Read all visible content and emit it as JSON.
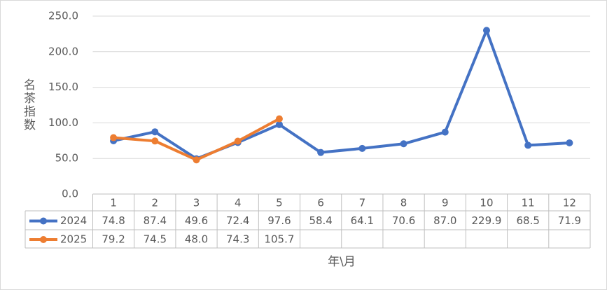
{
  "chart_data": {
    "type": "line",
    "ylabel": "名茶指数",
    "xlabel": "年\\月",
    "categories": [
      "1",
      "2",
      "3",
      "4",
      "5",
      "6",
      "7",
      "8",
      "9",
      "10",
      "11",
      "12"
    ],
    "series": [
      {
        "name": "2024",
        "color": "#4472c4",
        "values": [
          74.8,
          87.4,
          49.6,
          72.4,
          97.6,
          58.4,
          64.1,
          70.6,
          87.0,
          229.9,
          68.5,
          71.9
        ],
        "value_labels": [
          "74.8",
          "87.4",
          "49.6",
          "72.4",
          "97.6",
          "58.4",
          "64.1",
          "70.6",
          "87.0",
          "229.9",
          "68.5",
          "71.9"
        ]
      },
      {
        "name": "2025",
        "color": "#ed7d31",
        "values": [
          79.2,
          74.5,
          48.0,
          74.3,
          105.7,
          null,
          null,
          null,
          null,
          null,
          null,
          null
        ],
        "value_labels": [
          "79.2",
          "74.5",
          "48.0",
          "74.3",
          "105.7",
          null,
          null,
          null,
          null,
          null,
          null,
          null
        ]
      }
    ],
    "ylim": [
      0,
      250
    ],
    "yticks": [
      {
        "value": 0,
        "label": "0.0"
      },
      {
        "value": 50,
        "label": "50.0"
      },
      {
        "value": 100,
        "label": "100.0"
      },
      {
        "value": 150,
        "label": "150.0"
      },
      {
        "value": 200,
        "label": "200.0"
      },
      {
        "value": 250,
        "label": "250.0"
      }
    ],
    "grid": true,
    "data_table": true
  }
}
